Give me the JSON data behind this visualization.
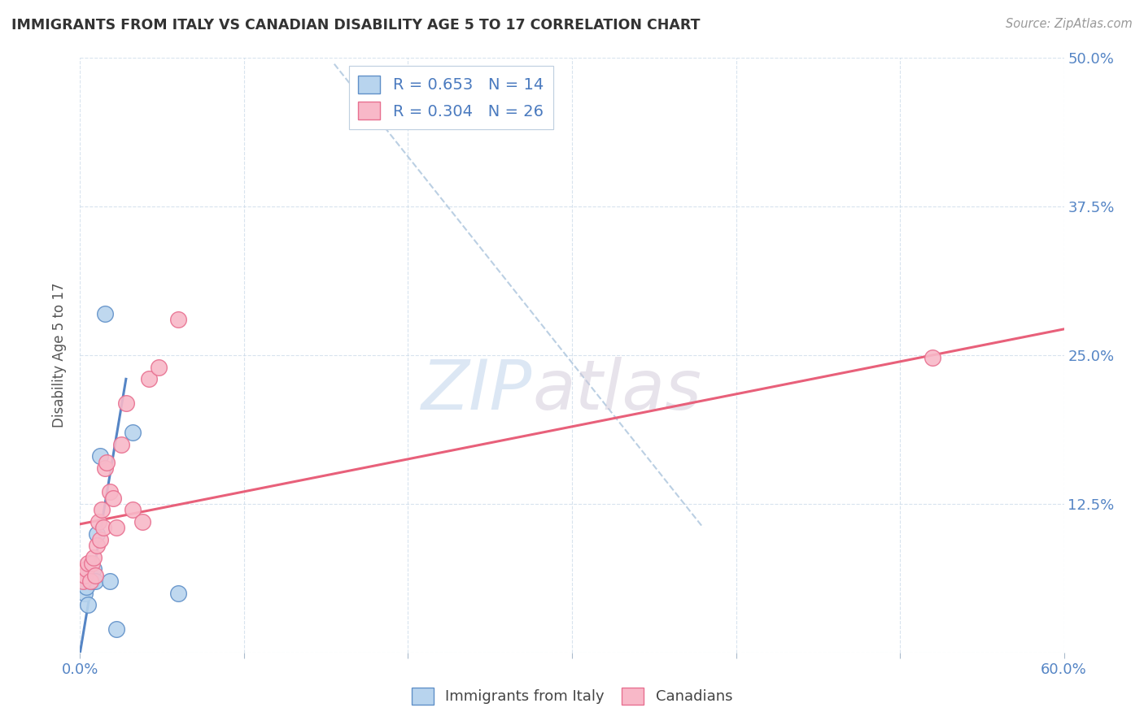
{
  "title": "IMMIGRANTS FROM ITALY VS CANADIAN DISABILITY AGE 5 TO 17 CORRELATION CHART",
  "source": "Source: ZipAtlas.com",
  "ylabel": "Disability Age 5 to 17",
  "legend_label1": "Immigrants from Italy",
  "legend_label2": "Canadians",
  "R1": 0.653,
  "N1": 14,
  "R2": 0.304,
  "N2": 26,
  "xlim": [
    0.0,
    0.6
  ],
  "ylim": [
    0.0,
    0.5
  ],
  "xticks": [
    0.0,
    0.1,
    0.2,
    0.3,
    0.4,
    0.5,
    0.6
  ],
  "yticks": [
    0.0,
    0.125,
    0.25,
    0.375,
    0.5
  ],
  "xtick_labels": [
    "0.0%",
    "",
    "",
    "",
    "",
    "",
    "60.0%"
  ],
  "ytick_labels_right": [
    "",
    "12.5%",
    "25.0%",
    "37.5%",
    "50.0%"
  ],
  "color_blue_fill": "#b8d4ee",
  "color_pink_fill": "#f8b8c8",
  "color_blue_edge": "#6090c8",
  "color_pink_edge": "#e87090",
  "color_blue_line": "#5585c5",
  "color_pink_line": "#e8607a",
  "color_dashed": "#aac4dc",
  "watermark_zip": "ZIP",
  "watermark_atlas": "atlas",
  "blue_dots_x": [
    0.003,
    0.004,
    0.005,
    0.006,
    0.007,
    0.008,
    0.009,
    0.01,
    0.012,
    0.015,
    0.018,
    0.022,
    0.032,
    0.06
  ],
  "blue_dots_y": [
    0.05,
    0.055,
    0.04,
    0.065,
    0.06,
    0.07,
    0.06,
    0.1,
    0.165,
    0.285,
    0.06,
    0.02,
    0.185,
    0.05
  ],
  "pink_dots_x": [
    0.002,
    0.003,
    0.004,
    0.005,
    0.006,
    0.007,
    0.008,
    0.009,
    0.01,
    0.011,
    0.012,
    0.013,
    0.014,
    0.015,
    0.016,
    0.018,
    0.02,
    0.022,
    0.025,
    0.028,
    0.032,
    0.038,
    0.042,
    0.048,
    0.06,
    0.52
  ],
  "pink_dots_y": [
    0.06,
    0.065,
    0.07,
    0.075,
    0.06,
    0.075,
    0.08,
    0.065,
    0.09,
    0.11,
    0.095,
    0.12,
    0.105,
    0.155,
    0.16,
    0.135,
    0.13,
    0.105,
    0.175,
    0.21,
    0.12,
    0.11,
    0.23,
    0.24,
    0.28,
    0.248
  ],
  "blue_line_x": [
    0.0,
    0.028
  ],
  "blue_line_y": [
    0.0,
    0.23
  ],
  "pink_line_x": [
    0.0,
    0.6
  ],
  "pink_line_y": [
    0.108,
    0.272
  ],
  "dashed_line_x": [
    0.155,
    0.38
  ],
  "dashed_line_y": [
    0.495,
    0.105
  ]
}
